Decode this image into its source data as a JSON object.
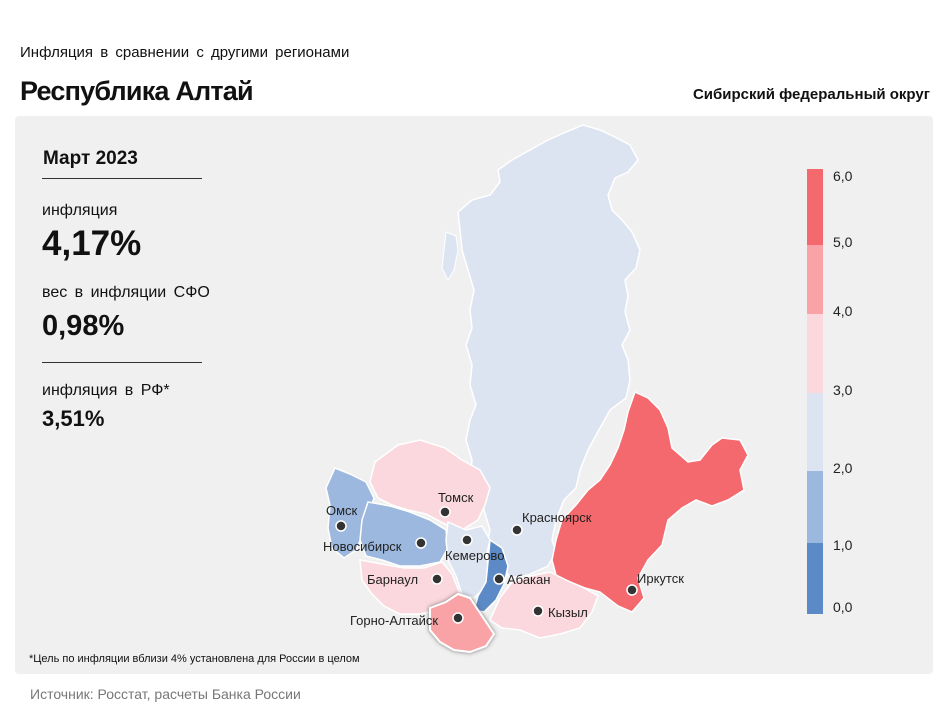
{
  "header": {
    "subtitle": "Инфляция в сравнении с другими регионами",
    "title": "Республика Алтай",
    "district": "Сибирский федеральный округ"
  },
  "stats": {
    "period": "Март 2023",
    "inflation_label": "инфляция",
    "inflation_value": "4,17%",
    "weight_label": "вес в инфляции СФО",
    "weight_value": "0,98%",
    "rf_label": "инфляция в РФ*",
    "rf_value": "3,51%"
  },
  "footnote": "*Цель по инфляции вблизи 4% установлена для России в целом",
  "source": "Источник: Росстат, расчеты Банка России",
  "legend": {
    "ticks": [
      "6,0",
      "5,0",
      "4,0",
      "3,0",
      "2,0",
      "1,0",
      "0,0"
    ],
    "colors": [
      "#f4696e",
      "#f9a3a6",
      "#fad8dd",
      "#dce4f2",
      "#9cb8de",
      "#5b8ac6"
    ]
  },
  "map": {
    "highlighted_region": "Республика Алтай",
    "cities": [
      {
        "name": "Томск",
        "region_color": "#fad8dd"
      },
      {
        "name": "Красноярск",
        "region_color": "#dce4f2"
      },
      {
        "name": "Омск",
        "region_color": "#9cb8de"
      },
      {
        "name": "Новосибирск",
        "region_color": "#9cb8de"
      },
      {
        "name": "Кемерово",
        "region_color": "#dce4f2"
      },
      {
        "name": "Барнаул",
        "region_color": "#fad8dd"
      },
      {
        "name": "Абакан",
        "region_color": "#5b8ac6"
      },
      {
        "name": "Иркутск",
        "region_color": "#f4696e"
      },
      {
        "name": "Кызыл",
        "region_color": "#fad8dd"
      },
      {
        "name": "Горно-Алтайск",
        "region_color": "#f9a3a6"
      }
    ]
  }
}
